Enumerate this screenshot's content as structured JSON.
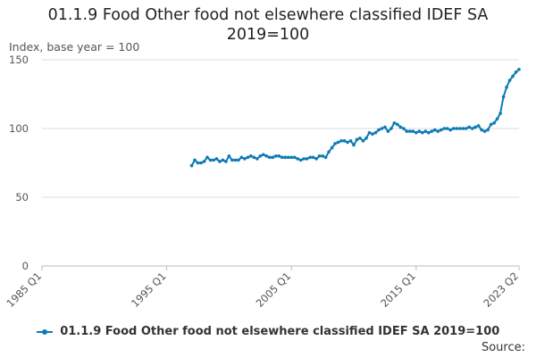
{
  "chart_data": {
    "type": "line",
    "title": "01.1.9 Food Other food not elsewhere classified IDEF SA 2019=100",
    "title_lines": [
      "01.1.9 Food Other food not elsewhere classified IDEF SA",
      "2019=100"
    ],
    "ylabel": "Index, base year = 100",
    "xlabel": "",
    "ylim": [
      0,
      150
    ],
    "yticks": [
      0,
      50,
      100,
      150
    ],
    "xlim": [
      "1985 Q1",
      "2023 Q2"
    ],
    "xticks": [
      "1985 Q1",
      "1995 Q1",
      "2005 Q1",
      "2015 Q1",
      "2023 Q2"
    ],
    "grid": true,
    "legend_position": "bottom",
    "series": [
      {
        "name": "01.1.9 Food Other food not elsewhere classified IDEF SA 2019=100",
        "color": "#0b7ab5",
        "x": [
          "1997 Q1",
          "1997 Q2",
          "1997 Q3",
          "1997 Q4",
          "1998 Q1",
          "1998 Q2",
          "1998 Q3",
          "1998 Q4",
          "1999 Q1",
          "1999 Q2",
          "1999 Q3",
          "1999 Q4",
          "2000 Q1",
          "2000 Q2",
          "2000 Q3",
          "2000 Q4",
          "2001 Q1",
          "2001 Q2",
          "2001 Q3",
          "2001 Q4",
          "2002 Q1",
          "2002 Q2",
          "2002 Q3",
          "2002 Q4",
          "2003 Q1",
          "2003 Q2",
          "2003 Q3",
          "2003 Q4",
          "2004 Q1",
          "2004 Q2",
          "2004 Q3",
          "2004 Q4",
          "2005 Q1",
          "2005 Q2",
          "2005 Q3",
          "2005 Q4",
          "2006 Q1",
          "2006 Q2",
          "2006 Q3",
          "2006 Q4",
          "2007 Q1",
          "2007 Q2",
          "2007 Q3",
          "2007 Q4",
          "2008 Q1",
          "2008 Q2",
          "2008 Q3",
          "2008 Q4",
          "2009 Q1",
          "2009 Q2",
          "2009 Q3",
          "2009 Q4",
          "2010 Q1",
          "2010 Q2",
          "2010 Q3",
          "2010 Q4",
          "2011 Q1",
          "2011 Q2",
          "2011 Q3",
          "2011 Q4",
          "2012 Q1",
          "2012 Q2",
          "2012 Q3",
          "2012 Q4",
          "2013 Q1",
          "2013 Q2",
          "2013 Q3",
          "2013 Q4",
          "2014 Q1",
          "2014 Q2",
          "2014 Q3",
          "2014 Q4",
          "2015 Q1",
          "2015 Q2",
          "2015 Q3",
          "2015 Q4",
          "2016 Q1",
          "2016 Q2",
          "2016 Q3",
          "2016 Q4",
          "2017 Q1",
          "2017 Q2",
          "2017 Q3",
          "2017 Q4",
          "2018 Q1",
          "2018 Q2",
          "2018 Q3",
          "2018 Q4",
          "2019 Q1",
          "2019 Q2",
          "2019 Q3",
          "2019 Q4",
          "2020 Q1",
          "2020 Q2",
          "2020 Q3",
          "2020 Q4",
          "2021 Q1",
          "2021 Q2",
          "2021 Q3",
          "2021 Q4",
          "2022 Q1",
          "2022 Q2",
          "2022 Q3",
          "2022 Q4",
          "2023 Q1",
          "2023 Q2"
        ],
        "values": [
          73,
          77,
          75,
          75,
          76,
          79,
          77,
          77,
          78,
          76,
          77,
          76,
          80,
          77,
          77,
          77,
          79,
          78,
          79,
          80,
          79,
          78,
          80,
          81,
          80,
          79,
          79,
          80,
          80,
          79,
          79,
          79,
          79,
          79,
          78,
          77,
          78,
          78,
          79,
          79,
          78,
          80,
          80,
          79,
          83,
          86,
          89,
          90,
          91,
          91,
          90,
          91,
          88,
          92,
          93,
          91,
          93,
          97,
          96,
          97,
          99,
          100,
          101,
          98,
          100,
          104,
          103,
          101,
          100,
          98,
          98,
          98,
          97,
          98,
          97,
          98,
          97,
          98,
          99,
          98,
          99,
          100,
          100,
          99,
          100,
          100,
          100,
          100,
          100,
          101,
          100,
          101,
          102,
          99,
          98,
          99,
          103,
          104,
          107,
          111,
          123,
          130,
          135,
          138,
          141,
          143
        ]
      }
    ]
  },
  "source_label": "Source:"
}
